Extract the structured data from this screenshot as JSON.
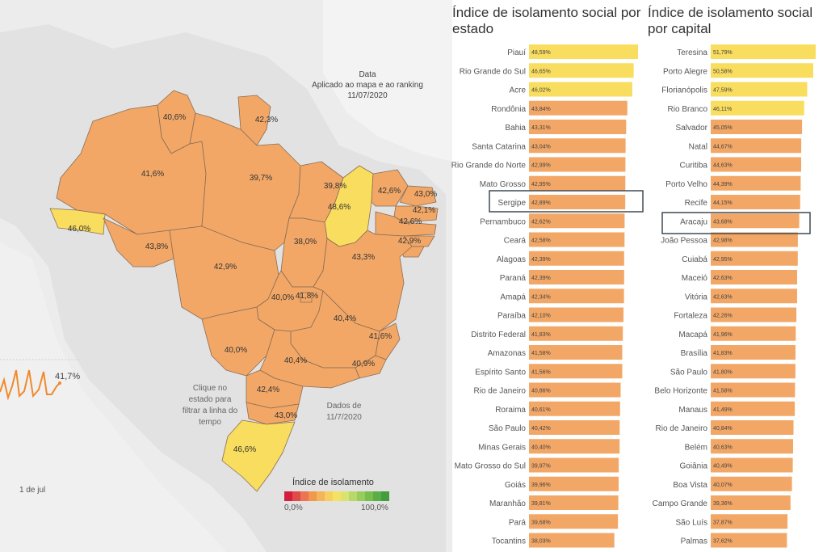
{
  "map": {
    "date_title": "Data",
    "date_subtitle": "Aplicado ao mapa e ao ranking",
    "date_value": "11/07/2020",
    "hint": "Clique no estado para filtrar a linha do tempo",
    "data_note": "Dados de 11/7/2020",
    "line_value": "41,7%",
    "line_axis_label": "1 de jul",
    "legend_title": "Índice de isolamento",
    "legend_min": "0,0%",
    "legend_max": "100,0%",
    "state_labels": [
      "40,6%",
      "42,3%",
      "41,6%",
      "39,7%",
      "39,8%",
      "48,6%",
      "42,6%",
      "43,0%",
      "42,1%",
      "42,6%",
      "42,9%",
      "46,0%",
      "43,8%",
      "42,9%",
      "38,0%",
      "43,3%",
      "40,0%",
      "41,8%",
      "40,4%",
      "41,6%",
      "40,0%",
      "40,4%",
      "40,9%",
      "42,4%",
      "43,0%",
      "46,6%"
    ]
  },
  "colors": {
    "orange": "#f2a766",
    "yellow": "#f9dd5e",
    "land": "#e2e2e2",
    "ocean": "#f0f0f0",
    "highlight_border": "#3e4a55"
  },
  "chart_data": [
    {
      "type": "bar",
      "title": "Índice de isolamento social por estado",
      "categories": [
        "Piauí",
        "Rio Grande do Sul",
        "Acre",
        "Rondônia",
        "Bahia",
        "Santa Catarina",
        "Rio Grande do Norte",
        "Mato Grosso",
        "Sergipe",
        "Pernambuco",
        "Ceará",
        "Alagoas",
        "Paraná",
        "Amapá",
        "Paraíba",
        "Distrito Federal",
        "Amazonas",
        "Espírito Santo",
        "Rio de Janeiro",
        "Roraima",
        "São Paulo",
        "Minas Gerais",
        "Mato Grosso do Sul",
        "Goiás",
        "Maranhão",
        "Pará",
        "Tocantins"
      ],
      "values": [
        48.59,
        46.65,
        46.02,
        43.84,
        43.31,
        43.04,
        42.99,
        42.95,
        42.89,
        42.62,
        42.58,
        42.39,
        42.39,
        42.34,
        42.1,
        41.83,
        41.58,
        41.56,
        40.86,
        40.61,
        40.42,
        40.4,
        39.97,
        39.96,
        39.81,
        39.68,
        38.03
      ],
      "labels": [
        "48,59%",
        "46,65%",
        "46,02%",
        "43,84%",
        "43,31%",
        "43,04%",
        "42,99%",
        "42,95%",
        "42,89%",
        "42,62%",
        "42,58%",
        "42,39%",
        "42,39%",
        "42,34%",
        "42,10%",
        "41,83%",
        "41,58%",
        "41,56%",
        "40,86%",
        "40,61%",
        "40,42%",
        "40,40%",
        "39,97%",
        "39,96%",
        "39,81%",
        "39,68%",
        "38,03%"
      ],
      "highlighted": "Sergipe"
    },
    {
      "type": "bar",
      "title": "Índice de isolamento social por capital",
      "categories": [
        "Teresina",
        "Porto Alegre",
        "Florianópolis",
        "Rio Branco",
        "Salvador",
        "Natal",
        "Curitiba",
        "Porto Velho",
        "Recife",
        "Aracaju",
        "João Pessoa",
        "Cuiabá",
        "Maceió",
        "Vitória",
        "Fortaleza",
        "Macapá",
        "Brasília",
        "São Paulo",
        "Belo Horizonte",
        "Manaus",
        "Rio de Janeiro",
        "Belém",
        "Goiânia",
        "Boa Vista",
        "Campo Grande",
        "São Luís",
        "Palmas"
      ],
      "values": [
        51.79,
        50.58,
        47.59,
        46.11,
        45.05,
        44.67,
        44.63,
        44.39,
        44.15,
        43.68,
        42.98,
        42.95,
        42.63,
        42.63,
        42.26,
        41.96,
        41.83,
        41.8,
        41.58,
        41.49,
        40.84,
        40.63,
        40.49,
        40.07,
        39.36,
        37.87,
        37.62
      ],
      "labels": [
        "51,79%",
        "50,58%",
        "47,59%",
        "46,11%",
        "45,05%",
        "44,67%",
        "44,63%",
        "44,39%",
        "44,15%",
        "43,68%",
        "42,98%",
        "42,95%",
        "42,63%",
        "42,63%",
        "42,26%",
        "41,96%",
        "41,83%",
        "41,80%",
        "41,58%",
        "41,49%",
        "40,84%",
        "40,63%",
        "40,49%",
        "40,07%",
        "39,36%",
        "37,87%",
        "37,62%"
      ],
      "highlighted": "Aracaju"
    }
  ]
}
